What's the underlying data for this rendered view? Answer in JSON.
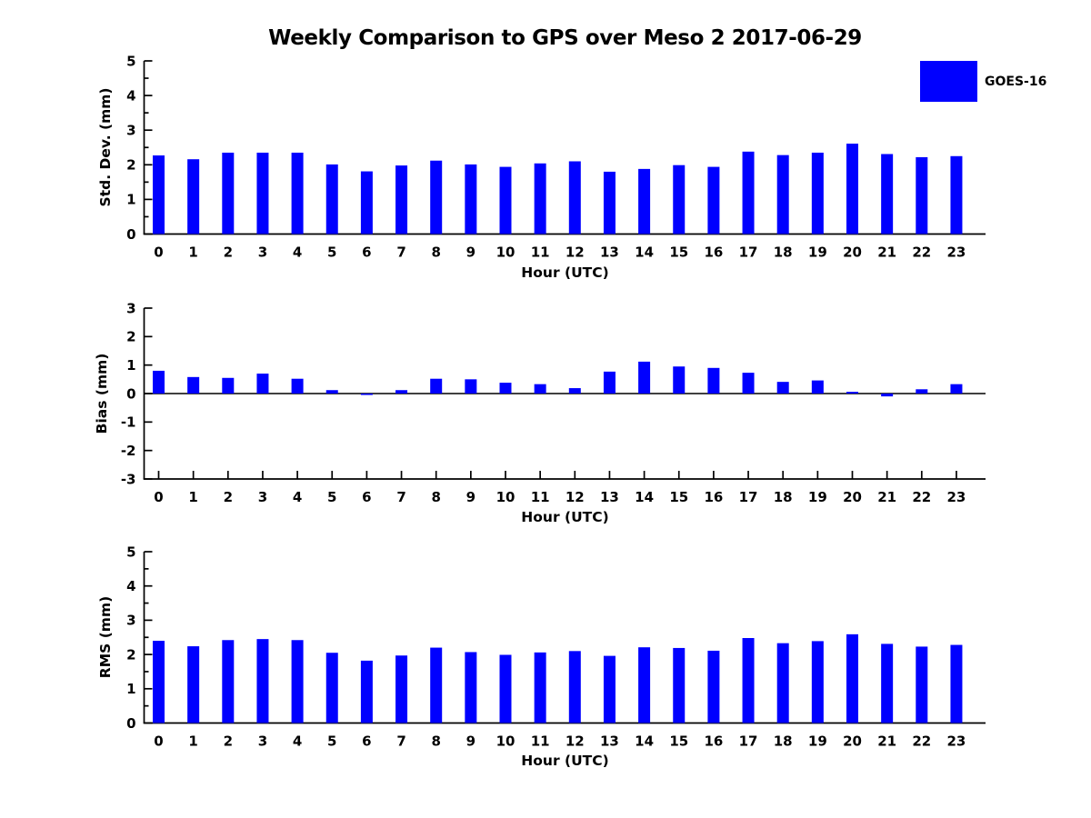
{
  "title": "Weekly Comparison to GPS over Meso 2 2017-06-29",
  "legend": {
    "label": "GOES-16",
    "color": "#0000ff",
    "position": "top-right"
  },
  "chart_data": [
    {
      "type": "bar",
      "ylabel": "Std. Dev. (mm)",
      "xlabel": "Hour (UTC)",
      "categories": [
        "0",
        "1",
        "2",
        "3",
        "4",
        "5",
        "6",
        "7",
        "8",
        "9",
        "10",
        "11",
        "12",
        "13",
        "14",
        "15",
        "16",
        "17",
        "18",
        "19",
        "20",
        "21",
        "22",
        "23"
      ],
      "values": [
        2.27,
        2.16,
        2.35,
        2.35,
        2.35,
        2.01,
        1.81,
        1.98,
        2.12,
        2.01,
        1.94,
        2.04,
        2.1,
        1.8,
        1.88,
        1.99,
        1.94,
        2.38,
        2.28,
        2.35,
        2.61,
        2.31,
        2.22,
        2.25
      ],
      "ylim": [
        0,
        5
      ],
      "yticks": [
        0,
        1,
        2,
        3,
        4,
        5
      ],
      "minor_tick_step": 0.5,
      "zero_line": false,
      "grid": false,
      "bar_color": "#0000ff"
    },
    {
      "type": "bar",
      "ylabel": "Bias (mm)",
      "xlabel": "Hour (UTC)",
      "categories": [
        "0",
        "1",
        "2",
        "3",
        "4",
        "5",
        "6",
        "7",
        "8",
        "9",
        "10",
        "11",
        "12",
        "13",
        "14",
        "15",
        "16",
        "17",
        "18",
        "19",
        "20",
        "21",
        "22",
        "23"
      ],
      "values": [
        0.8,
        0.58,
        0.55,
        0.7,
        0.52,
        0.12,
        -0.05,
        0.12,
        0.52,
        0.5,
        0.38,
        0.33,
        0.19,
        0.77,
        1.12,
        0.95,
        0.9,
        0.73,
        0.41,
        0.46,
        0.06,
        -0.1,
        0.15,
        0.33
      ],
      "ylim": [
        -3,
        3
      ],
      "yticks": [
        -3,
        -2,
        -1,
        0,
        1,
        2,
        3
      ],
      "minor_tick_step": null,
      "zero_line": true,
      "grid": false,
      "bar_color": "#0000ff"
    },
    {
      "type": "bar",
      "ylabel": "RMS (mm)",
      "xlabel": "Hour (UTC)",
      "categories": [
        "0",
        "1",
        "2",
        "3",
        "4",
        "5",
        "6",
        "7",
        "8",
        "9",
        "10",
        "11",
        "12",
        "13",
        "14",
        "15",
        "16",
        "17",
        "18",
        "19",
        "20",
        "21",
        "22",
        "23"
      ],
      "values": [
        2.4,
        2.24,
        2.42,
        2.45,
        2.42,
        2.05,
        1.82,
        1.97,
        2.2,
        2.07,
        1.99,
        2.06,
        2.1,
        1.96,
        2.21,
        2.19,
        2.11,
        2.48,
        2.33,
        2.39,
        2.59,
        2.31,
        2.23,
        2.28
      ],
      "ylim": [
        0,
        5
      ],
      "yticks": [
        0,
        1,
        2,
        3,
        4,
        5
      ],
      "minor_tick_step": 0.5,
      "zero_line": false,
      "grid": false,
      "bar_color": "#0000ff"
    }
  ]
}
